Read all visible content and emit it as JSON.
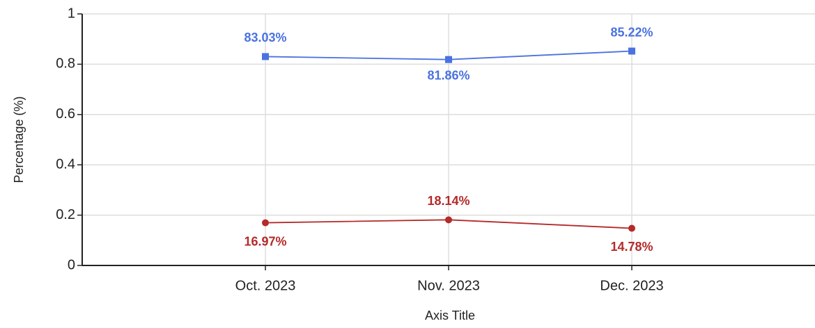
{
  "chart_data": {
    "type": "line",
    "x_label": "Axis Title",
    "y_label": "Percentage (%)",
    "categories": [
      "Oct. 2023",
      "Nov. 2023",
      "Dec. 2023"
    ],
    "series": [
      {
        "color": "#4a72e0",
        "marker": "square",
        "values": [
          0.8303,
          0.8186,
          0.8522
        ],
        "value_labels": [
          "83.03%",
          "81.86%",
          "85.22%"
        ]
      },
      {
        "color": "#b52a2a",
        "marker": "circle",
        "values": [
          0.1697,
          0.1814,
          0.1478
        ],
        "value_labels": [
          "16.97%",
          "18.14%",
          "14.78%"
        ]
      }
    ],
    "ylim": [
      0,
      1
    ],
    "yticks": [
      0,
      0.2,
      0.4,
      0.6,
      0.8,
      1
    ],
    "grid": true
  }
}
